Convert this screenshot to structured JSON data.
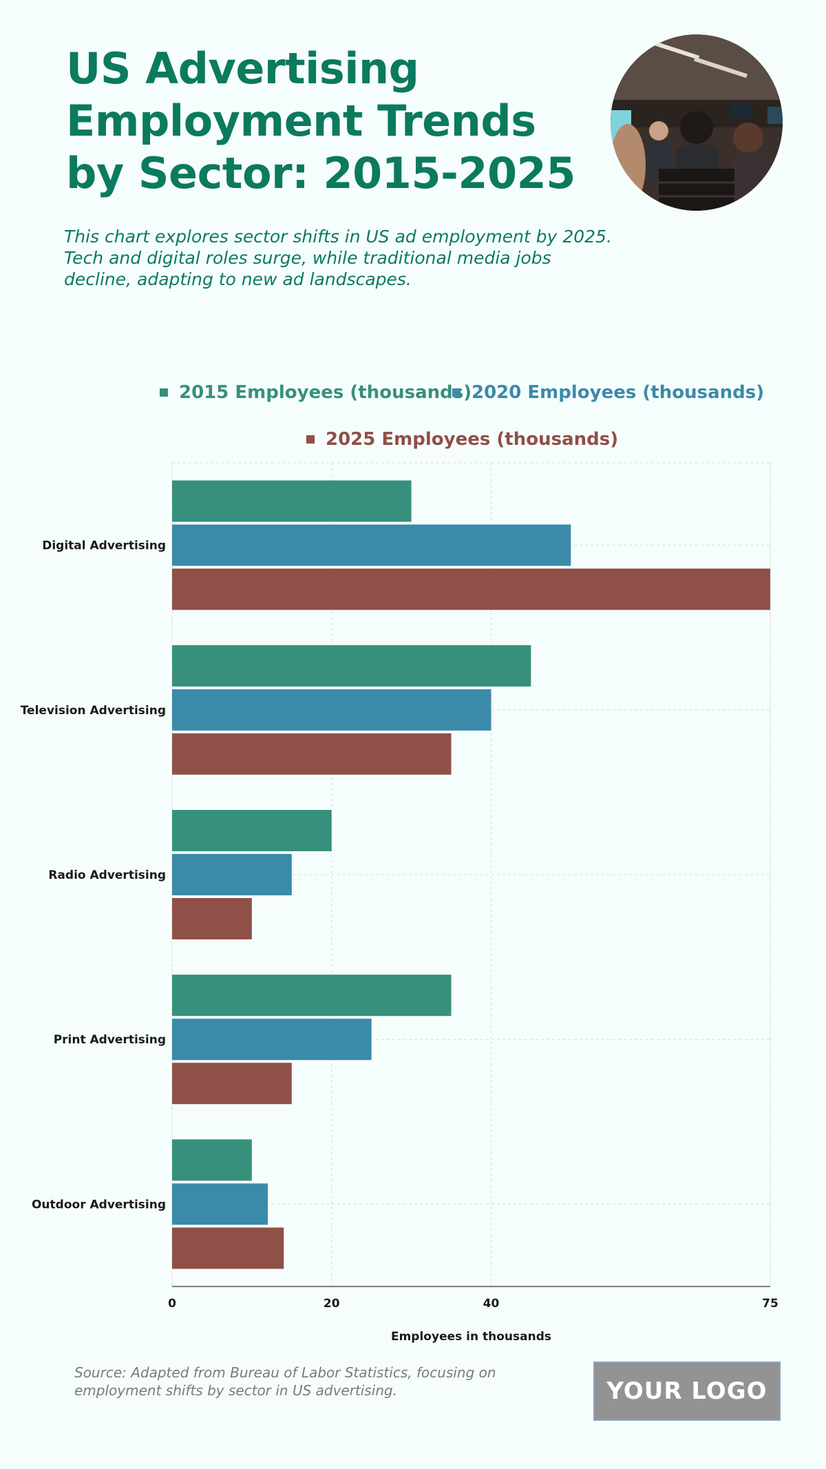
{
  "header": {
    "title": "US Advertising Employment Trends by Sector: 2015-2025",
    "subtitle": "This chart explores sector shifts in US ad employment by 2025. Tech and digital roles surge, while traditional media jobs decline, adapting to new ad landscapes."
  },
  "legend": {
    "s2015": "2015 Employees (thousands)",
    "s2020": "2020 Employees (thousands)",
    "s2025": "2025 Employees (thousands)"
  },
  "colors": {
    "s2015": "#37907c",
    "s2020": "#3b8aa9",
    "s2025": "#8f5047",
    "title": "#0b7a5f"
  },
  "chart_data": {
    "type": "bar",
    "orientation": "horizontal",
    "categories": [
      "Digital Advertising",
      "Television Advertising",
      "Radio Advertising",
      "Print Advertising",
      "Outdoor Advertising"
    ],
    "series": [
      {
        "name": "2015 Employees (thousands)",
        "values": [
          30,
          45,
          20,
          35,
          10
        ]
      },
      {
        "name": "2020 Employees (thousands)",
        "values": [
          50,
          40,
          15,
          25,
          12
        ]
      },
      {
        "name": "2025 Employees (thousands)",
        "values": [
          75,
          35,
          10,
          15,
          14
        ]
      }
    ],
    "xlabel": "Employees in thousands",
    "ylabel": "",
    "xlim": [
      0,
      75
    ],
    "xticks": [
      0,
      20,
      40,
      75
    ],
    "grid": true,
    "legend_position": "top"
  },
  "footer": {
    "source": "Source: Adapted from Bureau of Labor Statistics, focusing on employment shifts by sector in US advertising.",
    "logo": "YOUR LOGO"
  }
}
